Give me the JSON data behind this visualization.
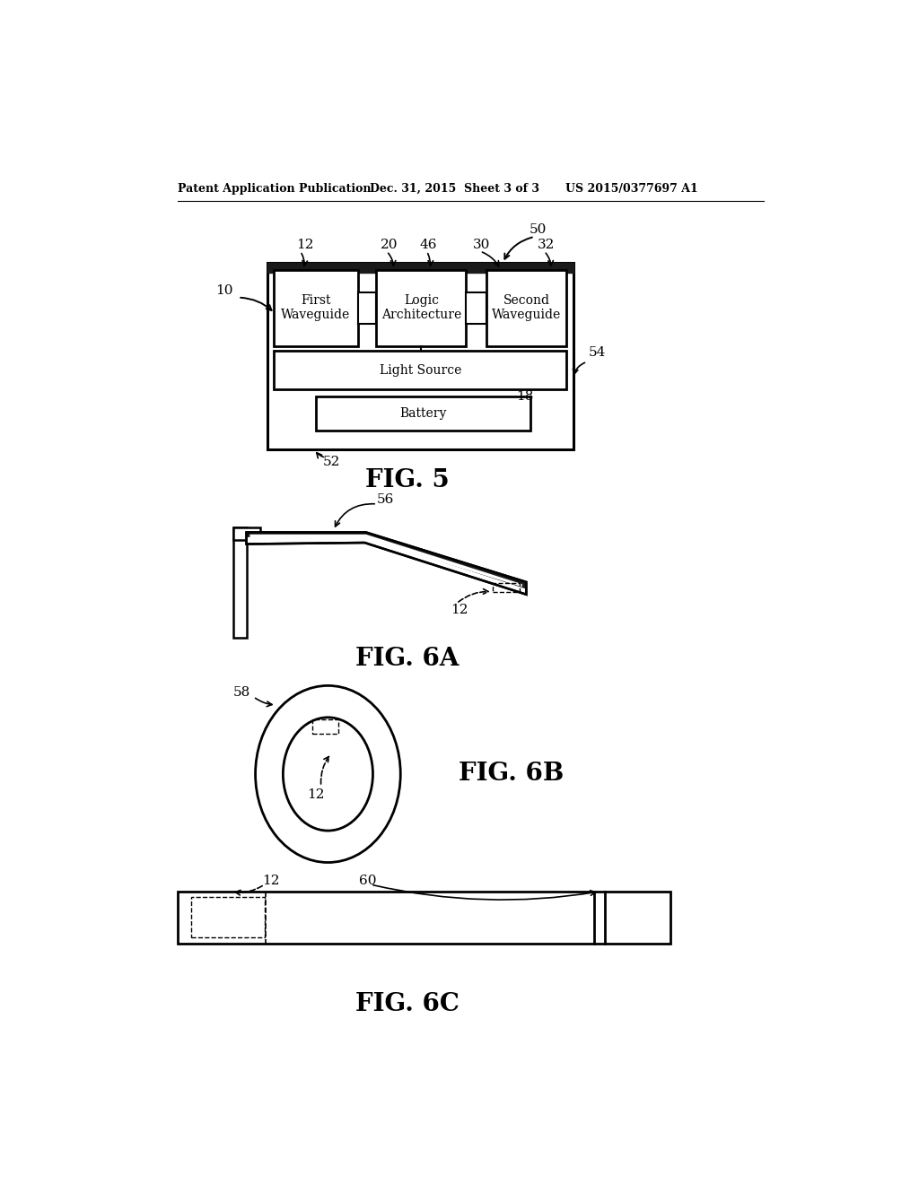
{
  "header_left": "Patent Application Publication",
  "header_mid": "Dec. 31, 2015  Sheet 3 of 3",
  "header_right": "US 2015/0377697 A1",
  "fig5_title": "FIG. 5",
  "fig6a_title": "FIG. 6A",
  "fig6b_title": "FIG. 6B",
  "fig6c_title": "FIG. 6C",
  "background_color": "#ffffff",
  "line_color": "#000000"
}
